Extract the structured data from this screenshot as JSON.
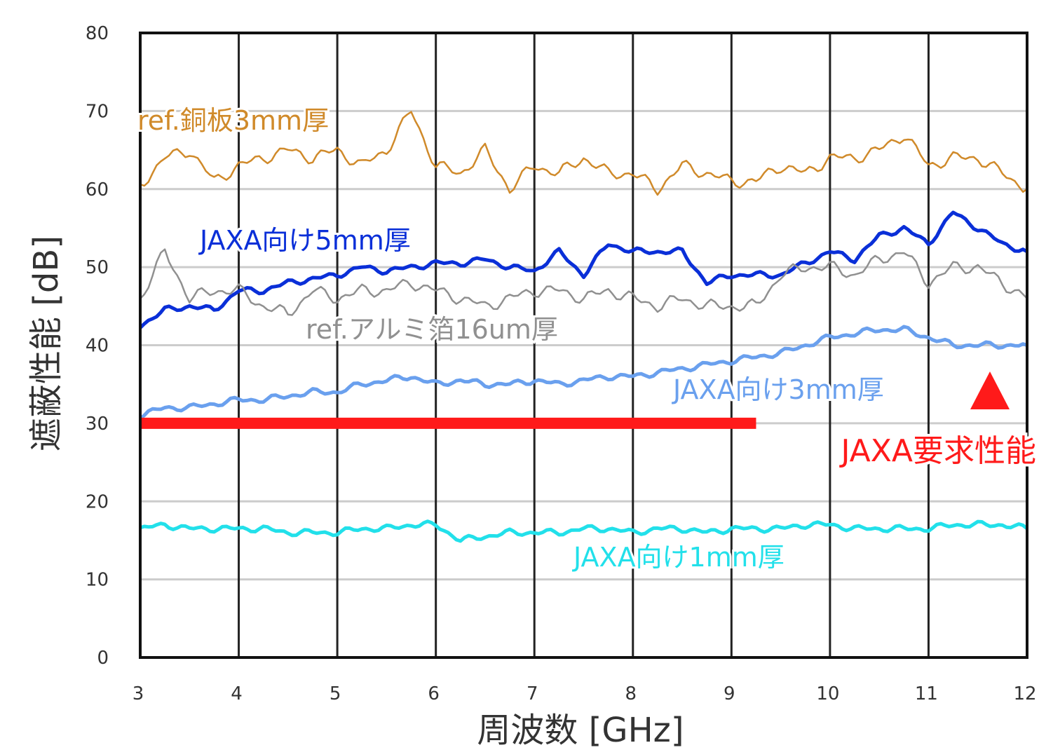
{
  "chart_data": {
    "type": "line",
    "title": "",
    "xlabel": "周波数 [GHz]",
    "ylabel": "遮蔽性能 [dB]",
    "xlim": [
      3,
      12
    ],
    "ylim": [
      0,
      80
    ],
    "x_ticks": [
      "3",
      "4",
      "5",
      "6",
      "7",
      "8",
      "9",
      "10",
      "11",
      "12"
    ],
    "y_ticks": [
      "0",
      "10",
      "20",
      "30",
      "40",
      "50",
      "60",
      "70",
      "80"
    ],
    "grid": true,
    "x": [
      3.0,
      3.25,
      3.5,
      3.75,
      4.0,
      4.25,
      4.5,
      4.75,
      5.0,
      5.25,
      5.5,
      5.75,
      6.0,
      6.25,
      6.5,
      6.75,
      7.0,
      7.25,
      7.5,
      7.75,
      8.0,
      8.25,
      8.5,
      8.75,
      9.0,
      9.25,
      9.5,
      9.75,
      10.0,
      10.25,
      10.5,
      10.75,
      11.0,
      11.25,
      11.5,
      11.75,
      12.0
    ],
    "series": [
      {
        "name": "ref.銅板3mm厚",
        "color": "#d08a2a",
        "values": [
          60.5,
          64,
          65,
          61,
          63,
          64,
          65,
          64,
          65,
          63,
          65,
          70,
          63,
          62,
          65,
          60,
          63,
          62,
          64,
          62,
          62,
          60,
          63,
          62,
          61,
          61,
          63,
          62,
          64,
          64,
          65,
          67,
          63,
          64,
          64,
          62,
          60
        ]
      },
      {
        "name": "JAXA向け5mm厚",
        "color": "#0a2fd8",
        "values": [
          42.5,
          44.5,
          45,
          44.5,
          47,
          47,
          48,
          48.5,
          49,
          50,
          49.5,
          50,
          50.5,
          50.5,
          51,
          50,
          49.5,
          52,
          49,
          53,
          52,
          52,
          52,
          48,
          49,
          49,
          49,
          50.5,
          52,
          51,
          54,
          55,
          53,
          57,
          55,
          53,
          52
        ]
      },
      {
        "name": "ref.アルミ箔16um厚",
        "color": "#909090",
        "values": [
          46,
          52,
          46,
          47,
          47,
          45,
          44,
          47,
          46,
          47,
          47,
          48,
          47,
          46,
          45,
          46,
          47,
          47,
          46,
          47,
          46,
          45,
          46,
          45,
          45,
          45,
          49,
          50,
          50,
          49,
          51,
          52,
          48,
          50,
          50,
          48,
          46
        ]
      },
      {
        "name": "JAXA向け3mm厚",
        "color": "#6aa0ee",
        "values": [
          31,
          32,
          32,
          32.5,
          33,
          33,
          33.5,
          34,
          34,
          35,
          35.5,
          36,
          35,
          35.5,
          35,
          35,
          35.5,
          35,
          35.5,
          36,
          36,
          36.5,
          37,
          37.5,
          38,
          38.5,
          39,
          40,
          41,
          41.5,
          42,
          42,
          41,
          40,
          40,
          40,
          40
        ]
      },
      {
        "name": "JAXA向け1mm厚",
        "color": "#22e0ea",
        "values": [
          16.5,
          17,
          16.5,
          16.5,
          16.5,
          16.5,
          16,
          16,
          16,
          16.5,
          16.5,
          17,
          17,
          15,
          15.5,
          16,
          16,
          16,
          16.5,
          16.5,
          16,
          16.5,
          16.5,
          16,
          16.5,
          16.5,
          16.5,
          17,
          17,
          16.5,
          16.5,
          16.5,
          16.5,
          17,
          17,
          17,
          16.5
        ]
      }
    ],
    "requirement": {
      "name": "JAXA要求性能",
      "value": 30,
      "x_range": [
        3,
        9.25
      ],
      "color": "#ff1a1a"
    }
  }
}
